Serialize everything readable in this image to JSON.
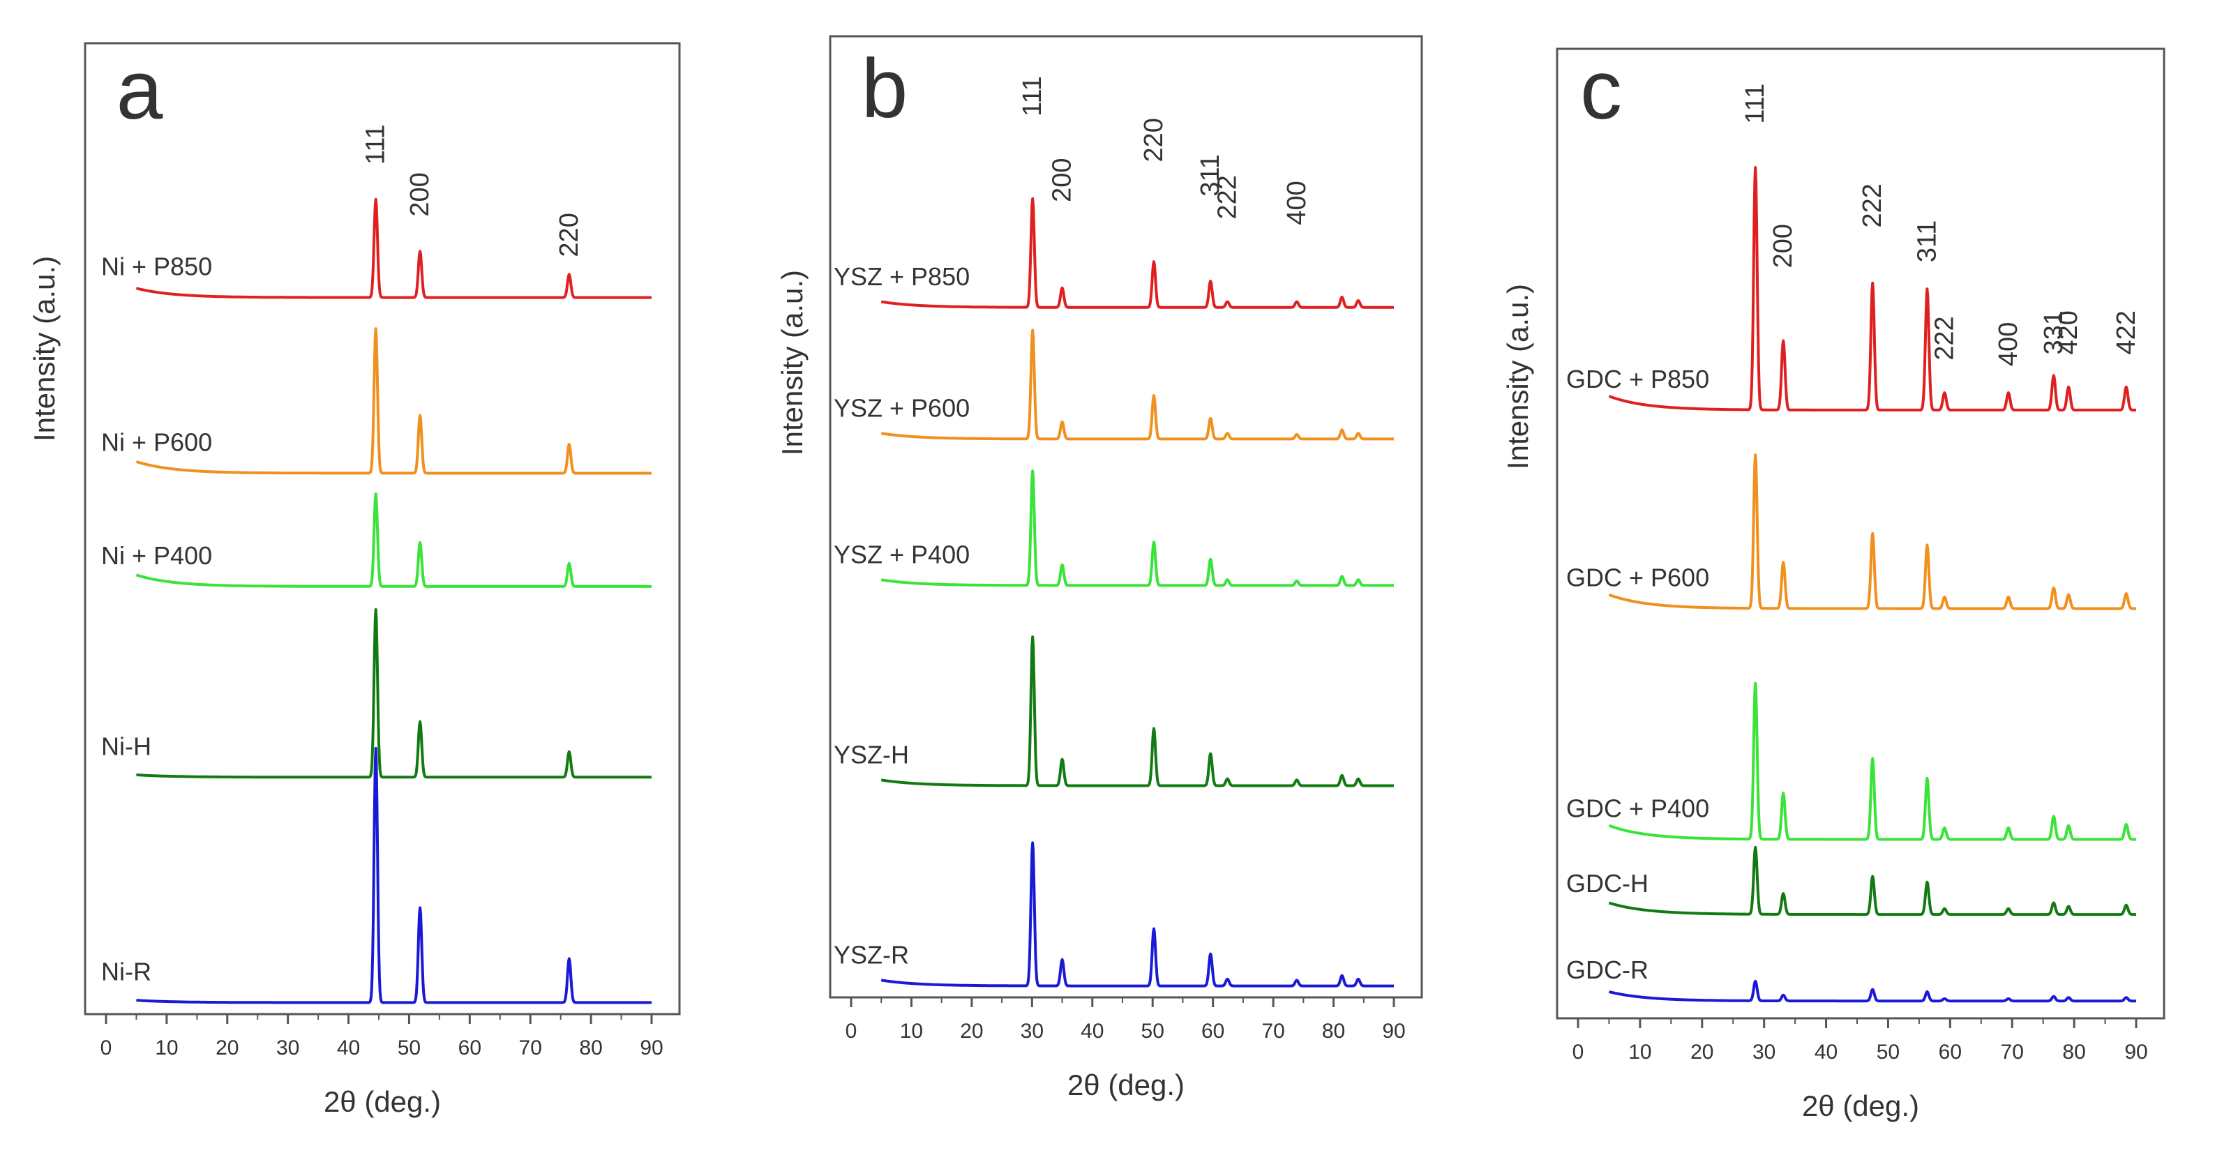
{
  "figure": {
    "colors": {
      "red": "#e02020",
      "orange": "#f0901e",
      "lightgreen": "#39e339",
      "darkgreen": "#137a13",
      "blue": "#1a1ad6",
      "axis": "#555555",
      "text": "#333333"
    }
  },
  "chart_data": [
    {
      "type": "line",
      "panel_label": "a",
      "xlabel": "2θ (deg.)",
      "ylabel": "Intensity (a.u.)",
      "xlim": [
        0,
        90
      ],
      "xticks": [
        0,
        10,
        20,
        30,
        40,
        50,
        60,
        70,
        80,
        90
      ],
      "ylim": [
        0,
        8.4
      ],
      "peaks_2theta": [
        44.5,
        51.8,
        76.4
      ],
      "peak_labels": [
        {
          "text": "111",
          "x": 44.5,
          "y": 7.35
        },
        {
          "text": "200",
          "x": 51.8,
          "y": 6.9
        },
        {
          "text": "220",
          "x": 76.4,
          "y": 6.55
        }
      ],
      "series": [
        {
          "name": "Ni + P850",
          "color": "red",
          "baseline": 6.2,
          "bg_start": 0.08,
          "peak_heights": [
            0.85,
            0.4,
            0.2
          ]
        },
        {
          "name": "Ni + P600",
          "color": "orange",
          "baseline": 4.68,
          "bg_start": 0.1,
          "peak_heights": [
            1.25,
            0.5,
            0.25
          ]
        },
        {
          "name": "Ni + P400",
          "color": "lightgreen",
          "baseline": 3.7,
          "bg_start": 0.1,
          "peak_heights": [
            0.8,
            0.38,
            0.2
          ]
        },
        {
          "name": "Ni-H",
          "color": "darkgreen",
          "baseline": 2.05,
          "bg_start": 0.02,
          "peak_heights": [
            1.45,
            0.48,
            0.22
          ]
        },
        {
          "name": "Ni-R",
          "color": "blue",
          "baseline": 0.1,
          "bg_start": 0.02,
          "peak_heights": [
            2.2,
            0.82,
            0.38
          ]
        }
      ]
    },
    {
      "type": "line",
      "panel_label": "b",
      "xlabel": "2θ (deg.)",
      "ylabel": "Intensity (a.u.)",
      "xlim": [
        0,
        90
      ],
      "xticks": [
        0,
        10,
        20,
        30,
        40,
        50,
        60,
        70,
        80,
        90
      ],
      "ylim": [
        0,
        8.4
      ],
      "peaks_2theta": [
        30.1,
        35.0,
        50.2,
        59.6,
        62.4,
        73.9,
        81.4,
        84.1
      ],
      "peak_labels": [
        {
          "text": "111",
          "x": 30.1,
          "y": 7.7
        },
        {
          "text": "200",
          "x": 35.0,
          "y": 6.95
        },
        {
          "text": "220",
          "x": 50.2,
          "y": 7.3
        },
        {
          "text": "311",
          "x": 59.6,
          "y": 7.0
        },
        {
          "text": "222",
          "x": 62.4,
          "y": 6.8
        },
        {
          "text": "400",
          "x": 73.9,
          "y": 6.75
        }
      ],
      "series": [
        {
          "name": "YSZ + P850",
          "color": "red",
          "baseline": 6.03,
          "bg_start": 0.05,
          "peak_heights": [
            0.95,
            0.17,
            0.4,
            0.23,
            0.05,
            0.05,
            0.09,
            0.06
          ]
        },
        {
          "name": "YSZ + P600",
          "color": "orange",
          "baseline": 4.88,
          "bg_start": 0.05,
          "peak_heights": [
            0.95,
            0.15,
            0.38,
            0.18,
            0.05,
            0.04,
            0.08,
            0.05
          ]
        },
        {
          "name": "YSZ + P400",
          "color": "lightgreen",
          "baseline": 3.6,
          "bg_start": 0.05,
          "peak_heights": [
            1.0,
            0.18,
            0.38,
            0.23,
            0.05,
            0.04,
            0.08,
            0.05
          ]
        },
        {
          "name": "YSZ-H",
          "color": "darkgreen",
          "baseline": 1.85,
          "bg_start": 0.05,
          "peak_heights": [
            1.3,
            0.23,
            0.5,
            0.28,
            0.06,
            0.05,
            0.09,
            0.06
          ]
        },
        {
          "name": "YSZ-R",
          "color": "blue",
          "baseline": 0.1,
          "bg_start": 0.05,
          "peak_heights": [
            1.25,
            0.23,
            0.5,
            0.28,
            0.06,
            0.05,
            0.09,
            0.06
          ]
        }
      ]
    },
    {
      "type": "line",
      "panel_label": "c",
      "xlabel": "2θ (deg.)",
      "ylabel": "Intensity (a.u.)",
      "xlim": [
        0,
        90
      ],
      "xticks": [
        0,
        10,
        20,
        30,
        40,
        50,
        60,
        70,
        80,
        90
      ],
      "ylim": [
        0,
        8.4
      ],
      "peaks_2theta": [
        28.6,
        33.1,
        47.5,
        56.3,
        59.1,
        69.4,
        76.7,
        79.1,
        88.4
      ],
      "peak_labels": [
        {
          "text": "111",
          "x": 28.6,
          "y": 7.75
        },
        {
          "text": "200",
          "x": 33.1,
          "y": 6.5
        },
        {
          "text": "222",
          "x": 47.5,
          "y": 6.85
        },
        {
          "text": "311",
          "x": 56.3,
          "y": 6.55
        },
        {
          "text": "222",
          "x": 59.1,
          "y": 5.7
        },
        {
          "text": "400",
          "x": 69.4,
          "y": 5.65
        },
        {
          "text": "331",
          "x": 76.7,
          "y": 5.75
        },
        {
          "text": "420",
          "x": 79.1,
          "y": 5.75
        },
        {
          "text": "422",
          "x": 88.4,
          "y": 5.75
        }
      ],
      "series": [
        {
          "name": "GDC + P850",
          "color": "red",
          "baseline": 5.27,
          "bg_start": 0.12,
          "peak_heights": [
            2.1,
            0.6,
            1.1,
            1.05,
            0.15,
            0.15,
            0.3,
            0.2,
            0.2
          ]
        },
        {
          "name": "GDC + P600",
          "color": "orange",
          "baseline": 3.55,
          "bg_start": 0.12,
          "peak_heights": [
            1.33,
            0.4,
            0.65,
            0.55,
            0.1,
            0.1,
            0.18,
            0.12,
            0.13
          ]
        },
        {
          "name": "GDC + P400",
          "color": "lightgreen",
          "baseline": 1.55,
          "bg_start": 0.12,
          "peak_heights": [
            1.35,
            0.4,
            0.7,
            0.53,
            0.1,
            0.1,
            0.2,
            0.12,
            0.13
          ]
        },
        {
          "name": "GDC-H",
          "color": "darkgreen",
          "baseline": 0.9,
          "bg_start": 0.1,
          "peak_heights": [
            0.58,
            0.18,
            0.33,
            0.28,
            0.05,
            0.05,
            0.1,
            0.07,
            0.08
          ]
        },
        {
          "name": "GDC-R",
          "color": "blue",
          "baseline": 0.15,
          "bg_start": 0.08,
          "peak_heights": [
            0.17,
            0.05,
            0.1,
            0.08,
            0.02,
            0.02,
            0.04,
            0.03,
            0.03
          ]
        }
      ]
    }
  ]
}
